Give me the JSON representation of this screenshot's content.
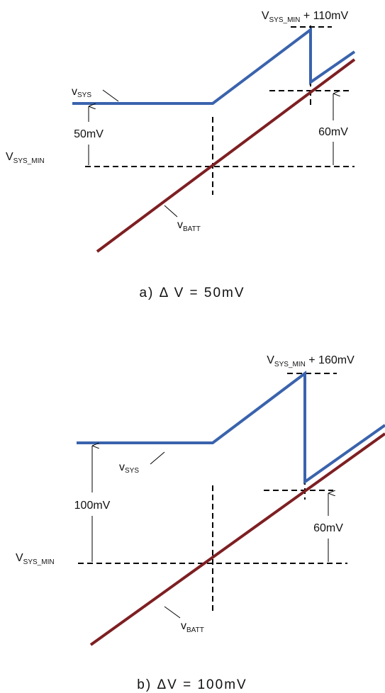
{
  "panels": [
    {
      "top_label": {
        "main": "V",
        "sub": "SYS_MIN",
        "suffix": " + 110mV"
      },
      "sys_label": {
        "main": "v",
        "sub": "SYS"
      },
      "min_label": {
        "main": "V",
        "sub": "SYS_MIN"
      },
      "batt_label": {
        "main": "v",
        "sub": "BATT"
      },
      "left_delta": "50mV",
      "right_delta": "60mV",
      "caption": "a) Δ V = 50mV"
    },
    {
      "top_label": {
        "main": "V",
        "sub": "SYS_MIN",
        "suffix": " + 160mV"
      },
      "sys_label": {
        "main": "v",
        "sub": "SYS"
      },
      "min_label": {
        "main": "V",
        "sub": "SYS_MIN"
      },
      "batt_label": {
        "main": "v",
        "sub": "BATT"
      },
      "left_delta": "100mV",
      "right_delta": "60mV",
      "caption": "b) ΔV = 100mV"
    }
  ]
}
